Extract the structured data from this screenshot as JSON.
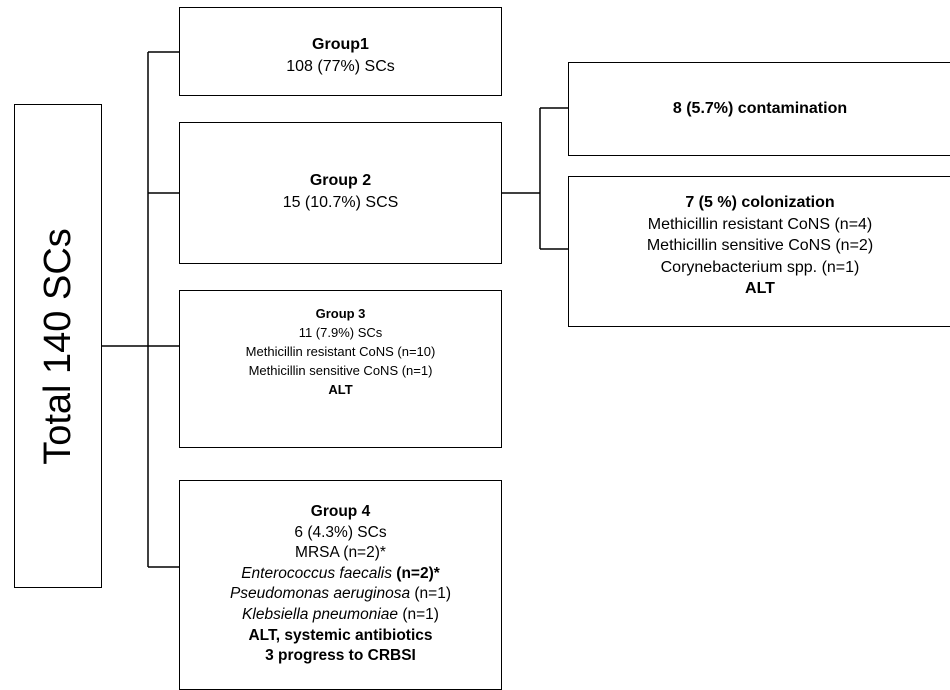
{
  "total": {
    "label": "Total 140 SCs"
  },
  "group1": {
    "title": "Group1",
    "count": "108 (77%) SCs"
  },
  "group2": {
    "title": "Group 2",
    "count": "15 (10.7%) SCS"
  },
  "group3": {
    "title": "Group 3",
    "count": "11 (7.9%) SCs",
    "items": [
      "Methicillin resistant CoNS (n=10)",
      "Methicillin sensitive CoNS (n=1)"
    ],
    "treatment": "ALT"
  },
  "group4": {
    "title": "Group 4",
    "count": "6 (4.3%) SCs",
    "mrsa": "MRSA (n=2)*",
    "organisms": [
      {
        "name": "Enterococcus faecalis",
        "n": " (n=2)*"
      },
      {
        "name": "Pseudomonas aeruginosa",
        "n": " (n=1)"
      },
      {
        "name": "Klebsiella pneumoniae",
        "n": " (n=1)"
      }
    ],
    "treatment": "ALT, systemic antibiotics",
    "outcome": "3 progress to CRBSI"
  },
  "contamination": {
    "title": "8 (5.7%) contamination"
  },
  "colonization": {
    "title": "7 (5 %) colonization",
    "items": [
      "Methicillin resistant CoNS (n=4)",
      "Methicillin sensitive  CoNS (n=2)",
      "Corynebacterium spp. (n=1)"
    ],
    "treatment": "ALT"
  }
}
